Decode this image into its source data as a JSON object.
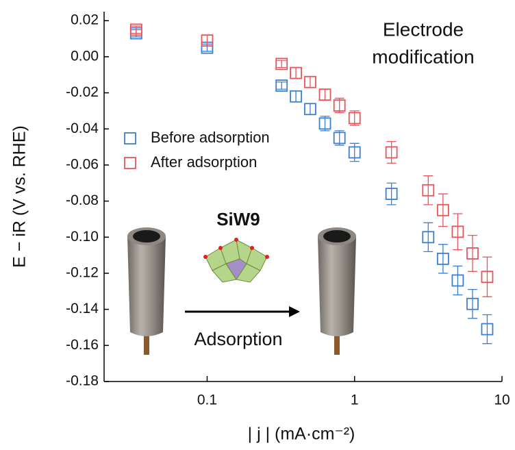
{
  "chart_data": {
    "type": "scatter",
    "x_label": "| j | (mA·cm⁻²)",
    "y_label": "E − iR (V vs. RHE)",
    "annotations": [
      "Electrode",
      "modification"
    ],
    "inset_labels": [
      "SiW9",
      "Adsorption"
    ],
    "x": [
      0.033,
      0.1,
      0.32,
      0.4,
      0.5,
      0.63,
      0.79,
      1.0,
      1.78,
      3.16,
      3.98,
      5.01,
      6.31,
      7.94
    ],
    "series": [
      {
        "name": "Before adsorption",
        "color": "#3a7fd5",
        "values": [
          0.013,
          0.005,
          -0.016,
          -0.022,
          -0.029,
          -0.037,
          -0.045,
          -0.053,
          -0.076,
          -0.1,
          -0.112,
          -0.124,
          -0.137,
          -0.151
        ],
        "errors": [
          0.002,
          0.002,
          0.002,
          0.003,
          0.003,
          0.004,
          0.004,
          0.005,
          0.006,
          0.008,
          0.008,
          0.008,
          0.008,
          0.008
        ]
      },
      {
        "name": "After adsorption",
        "color": "#e8545a",
        "values": [
          0.015,
          0.009,
          -0.004,
          -0.009,
          -0.014,
          -0.021,
          -0.027,
          -0.034,
          -0.053,
          -0.074,
          -0.085,
          -0.097,
          -0.109,
          -0.122
        ],
        "errors": [
          0.002,
          0.003,
          0.002,
          0.003,
          0.003,
          0.003,
          0.004,
          0.004,
          0.006,
          0.008,
          0.009,
          0.01,
          0.01,
          0.011
        ]
      }
    ],
    "xscale": "log",
    "xlim": [
      0.02,
      10
    ],
    "xticks": [
      0.1,
      1,
      10
    ],
    "ylim": [
      -0.18,
      0.025
    ],
    "yticks": [
      0.02,
      {
        "value": 0,
        "label": "0.00"
      },
      -0.02,
      -0.04,
      -0.06,
      -0.08,
      {
        "value": -0.1,
        "label": "-0.10"
      },
      -0.12,
      -0.14,
      -0.16,
      -0.18
    ],
    "legend": "center left"
  }
}
